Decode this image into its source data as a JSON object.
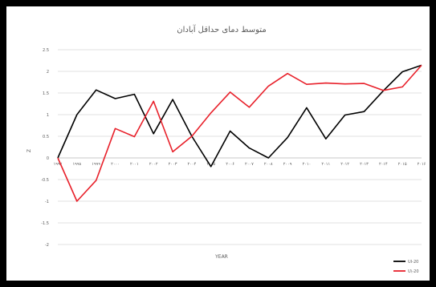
{
  "chart_data": {
    "type": "line",
    "title": "متوسط دمای حداقل آبادان",
    "xlabel": "YEAR",
    "ylabel": "Z",
    "ylim": [
      -2,
      2.5
    ],
    "yticks": [
      "2.5",
      "2",
      "1.5",
      "1",
      "0.5",
      "0",
      "-0.5",
      "-1",
      "-1.5",
      "-2"
    ],
    "categories": [
      "۱۹۹۷",
      "۱۹۹۸",
      "۱۹۹۹",
      "۲۰۰۰",
      "۲۰۰۱",
      "۲۰۰۲",
      "۲۰۰۳",
      "۲۰۰۴",
      "۲۰۰۵",
      "۲۰۰۶",
      "۲۰۰۷",
      "۲۰۰۸",
      "۲۰۰۹",
      "۲۰۱۰",
      "۲۰۱۱",
      "۲۰۱۲",
      "۲۰۱۳",
      "۲۰۱۴",
      "۲۰۱۵",
      "۲۰۱۶"
    ],
    "grid": true,
    "legend_position": "bottom-right",
    "series": [
      {
        "name": "UI-20",
        "color": "#000000",
        "values": [
          0,
          1.0,
          1.57,
          1.37,
          1.47,
          0.56,
          1.35,
          0.5,
          -0.2,
          0.62,
          0.23,
          0.0,
          0.47,
          1.16,
          0.44,
          0.99,
          1.07,
          1.55,
          1.99,
          2.14
        ]
      },
      {
        "name": "U\\-20",
        "color": "#e8202a",
        "values": [
          0,
          -1.0,
          -0.52,
          0.68,
          0.49,
          1.31,
          0.14,
          0.5,
          1.04,
          1.52,
          1.17,
          1.66,
          1.95,
          1.7,
          1.73,
          1.71,
          1.72,
          1.56,
          1.64,
          2.14
        ]
      }
    ]
  }
}
